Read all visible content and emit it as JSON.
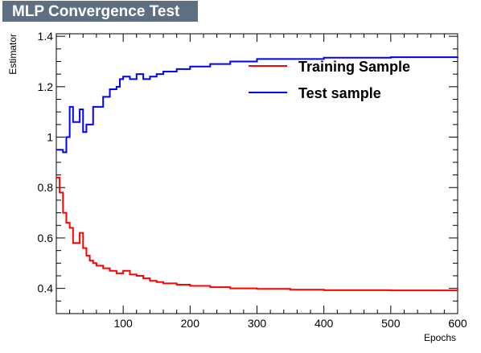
{
  "chart_data": {
    "type": "line",
    "title": "MLP Convergence Test",
    "xlabel": "Epochs",
    "ylabel": "Estimator",
    "xlim": [
      0,
      600
    ],
    "ylim": [
      0.3,
      1.41
    ],
    "x_ticks": [
      100,
      200,
      300,
      400,
      500,
      600
    ],
    "y_ticks": [
      0.4,
      0.6,
      0.8,
      1,
      1.2,
      1.4
    ],
    "y_tick_labels": [
      "0.4",
      "0.6",
      "0.8",
      "1",
      "1.2",
      "1.4"
    ],
    "legend_position": "top-right",
    "series": [
      {
        "name": "Training Sample",
        "color": "#ff0000",
        "style": "step",
        "x": [
          0,
          5,
          10,
          15,
          20,
          25,
          30,
          35,
          40,
          45,
          50,
          55,
          60,
          70,
          80,
          90,
          100,
          110,
          120,
          130,
          140,
          150,
          160,
          180,
          200,
          230,
          260,
          300,
          350,
          400,
          500,
          600
        ],
        "y": [
          0.84,
          0.78,
          0.7,
          0.66,
          0.64,
          0.58,
          0.58,
          0.62,
          0.56,
          0.53,
          0.51,
          0.5,
          0.49,
          0.48,
          0.47,
          0.46,
          0.47,
          0.455,
          0.45,
          0.44,
          0.43,
          0.425,
          0.42,
          0.415,
          0.41,
          0.405,
          0.4,
          0.398,
          0.395,
          0.393,
          0.392,
          0.392
        ]
      },
      {
        "name": "Test sample",
        "color": "#0000ff",
        "style": "step",
        "x": [
          0,
          5,
          10,
          15,
          20,
          25,
          30,
          35,
          40,
          45,
          50,
          55,
          60,
          70,
          80,
          90,
          95,
          100,
          110,
          120,
          130,
          140,
          150,
          160,
          180,
          200,
          230,
          260,
          300,
          350,
          400,
          500,
          600
        ],
        "y": [
          0.95,
          0.95,
          0.94,
          1.0,
          1.12,
          1.06,
          1.06,
          1.11,
          1.02,
          1.05,
          1.05,
          1.12,
          1.12,
          1.16,
          1.19,
          1.2,
          1.23,
          1.24,
          1.23,
          1.25,
          1.23,
          1.24,
          1.25,
          1.26,
          1.27,
          1.28,
          1.29,
          1.3,
          1.31,
          1.31,
          1.315,
          1.317,
          1.318
        ]
      }
    ]
  }
}
